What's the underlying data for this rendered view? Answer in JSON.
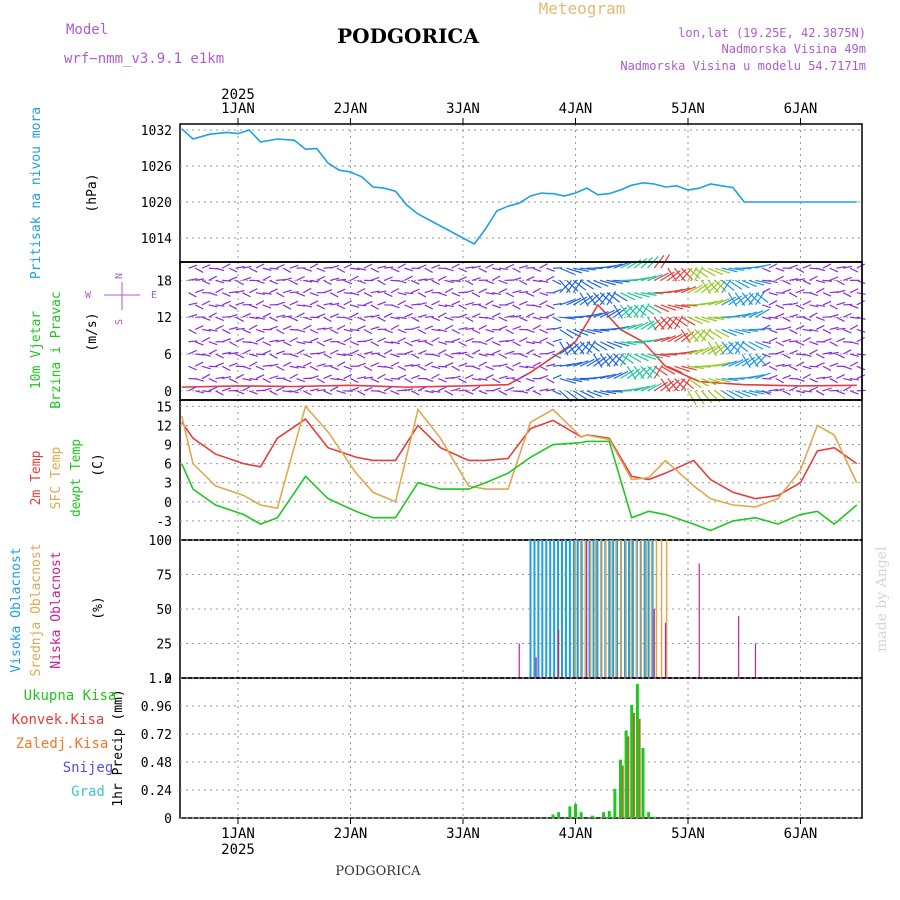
{
  "header": {
    "model_label": "Model",
    "model_name": "wrf−nmm_v3.9.1  e1km",
    "station": "PODGORICA",
    "meteogram": "Meteogram",
    "lonlat": "lon,lat (19.25E, 42.3875N)",
    "elevation": "Nadmorska Visina 49m",
    "model_elevation": "Nadmorska Visina u modelu 54.7171m",
    "year": "2025",
    "footer_station": "PODGORICA",
    "watermark": "made by Angel"
  },
  "colors": {
    "pressure": "#1ea0e6",
    "temp2m": "#e83c3c",
    "sfc": "#e0a850",
    "dewpt": "#1ec81e",
    "cloud_high": "#1ea0e6",
    "cloud_mid": "#e0a850",
    "cloud_low": "#c81e96",
    "precip_total": "#1ec81e",
    "precip_conv": "#e83c3c",
    "precip_frozen": "#f07828",
    "precip_snow": "#5050e6",
    "precip_graup": "#3cc8c8",
    "title_purple": "#b05ad0",
    "meteogram_orange": "#e8b870",
    "grid": "#999999"
  },
  "chart_data": [
    {
      "type": "line",
      "panel": "pressure",
      "ylabel": [
        "Pritisak na nivou mora",
        "(hPa)"
      ],
      "ylim": [
        1010,
        1033
      ],
      "yticks": [
        1014,
        1020,
        1026,
        1032
      ],
      "x_day_offset": [
        0,
        0.1,
        0.25,
        0.4,
        0.5,
        0.6,
        0.7,
        0.85,
        1.0,
        1.1,
        1.2,
        1.3,
        1.4,
        1.5,
        1.6,
        1.7,
        1.8,
        1.9,
        2.0,
        2.1,
        2.2,
        2.3,
        2.4,
        2.5,
        2.6,
        2.7,
        2.8,
        2.9,
        3.0,
        3.1,
        3.2,
        3.25,
        3.3,
        3.4,
        3.5,
        3.6,
        3.7,
        3.8,
        3.9,
        4.0,
        4.1,
        4.2,
        4.3,
        4.4,
        4.5,
        4.6,
        4.7,
        4.8,
        4.9,
        5.0,
        5.1,
        5.2,
        5.3,
        5.4,
        5.5,
        5.6,
        5.7,
        5.8,
        5.9,
        6.0
      ],
      "values": [
        1032.2,
        1030.5,
        1031.3,
        1031.6,
        1031.4,
        1032.0,
        1030.0,
        1030.5,
        1030.3,
        1028.8,
        1028.9,
        1026.5,
        1025.3,
        1025.0,
        1024.2,
        1022.5,
        1022.3,
        1021.8,
        1019.5,
        1018.0,
        1017.0,
        1016.0,
        1015.0,
        1014.0,
        1013.0,
        1015.5,
        1018.5,
        1019.3,
        1019.8,
        1021.0,
        1021.5,
        1021.4,
        1021.4,
        1021.0,
        1021.5,
        1022.3,
        1021.2,
        1021.4,
        1022.0,
        1022.8,
        1023.2,
        1023.0,
        1022.5,
        1022.7,
        1022.0,
        1022.3,
        1023.0,
        1022.7,
        1022.4,
        1020.0,
        1020.0,
        1020.0,
        1020.0,
        1020.0,
        1020.0,
        1020.0,
        1020.0,
        1020.0,
        1020.0,
        1020.0
      ]
    },
    {
      "type": "line",
      "panel": "wind",
      "ylabel": [
        "10m Vjetar",
        "Brzina i Pravac",
        "(m/s)"
      ],
      "ylim": [
        -1.5,
        21
      ],
      "yticks": [
        0,
        6,
        12,
        18
      ],
      "compass": [
        "N",
        "W",
        "E",
        "S"
      ],
      "x_day_offset": [
        0,
        0.5,
        1.0,
        1.5,
        2.0,
        2.5,
        2.9,
        3.1,
        3.3,
        3.5,
        3.7,
        3.9,
        4.1,
        4.3,
        4.6,
        5.0,
        5.5,
        6.0
      ],
      "speed": [
        0.6,
        0.8,
        0.7,
        0.9,
        0.6,
        0.8,
        1.0,
        3.0,
        5.5,
        8.0,
        14.0,
        10.0,
        8.0,
        4.0,
        1.5,
        1.0,
        0.8,
        0.9
      ]
    },
    {
      "type": "line",
      "panel": "temperature",
      "ylabel": [
        "2m Temp",
        "SFC Temp",
        "dewpt Temp",
        "(C)"
      ],
      "ylim": [
        -6,
        16
      ],
      "yticks": [
        -3,
        0,
        3,
        6,
        9,
        12,
        15
      ],
      "x_day_offset": [
        0,
        0.1,
        0.3,
        0.55,
        0.7,
        0.85,
        1.1,
        1.3,
        1.55,
        1.7,
        1.9,
        2.1,
        2.3,
        2.55,
        2.7,
        2.9,
        3.1,
        3.3,
        3.55,
        3.6,
        3.65,
        3.8,
        4.0,
        4.15,
        4.3,
        4.55,
        4.7,
        4.9,
        5.1,
        5.3,
        5.5,
        5.65,
        5.8,
        6.0
      ],
      "series": [
        {
          "name": "2m Temp",
          "values": [
            12.5,
            10,
            7.5,
            6,
            5.5,
            10,
            13,
            8.5,
            7,
            6.5,
            6.5,
            12,
            8.5,
            6.5,
            6.5,
            6.8,
            11.5,
            12.8,
            10.2,
            10.5,
            10.4,
            10.0,
            4.0,
            3.5,
            4.5,
            6.5,
            3.5,
            1.5,
            0.5,
            1.0,
            3.0,
            8.0,
            8.5,
            6.0
          ]
        },
        {
          "name": "SFC Temp",
          "values": [
            13.5,
            6,
            2.5,
            1.0,
            -0.5,
            -1.0,
            15,
            11,
            4.5,
            1.5,
            0.0,
            14.5,
            10,
            2.5,
            2.0,
            2.0,
            12.5,
            14.5,
            10.2,
            10.5,
            10.3,
            9.8,
            3.5,
            3.8,
            6.5,
            2.5,
            0.5,
            -0.5,
            -0.8,
            0.5,
            5.0,
            12.0,
            10.5,
            3.0
          ]
        },
        {
          "name": "dewpt Temp",
          "values": [
            6.0,
            2.0,
            -0.5,
            -2.0,
            -3.5,
            -2.5,
            4.0,
            0.5,
            -1.5,
            -2.5,
            -2.5,
            3.0,
            2.0,
            2.0,
            3.0,
            4.5,
            7.0,
            9.0,
            9.3,
            9.5,
            9.5,
            9.5,
            -2.5,
            -1.5,
            -2.0,
            -3.5,
            -4.5,
            -3.0,
            -2.5,
            -3.5,
            -2.0,
            -1.5,
            -3.5,
            -0.5
          ]
        }
      ]
    },
    {
      "type": "bar",
      "panel": "cloud",
      "ylabel": [
        "Visoka Oblacnost",
        "Srednja Oblacnost",
        "Niska Oblacnost",
        "(%)"
      ],
      "ylim": [
        0,
        100
      ],
      "yticks": [
        0,
        25,
        50,
        75,
        100
      ],
      "high_x": [
        3.2,
        3.3,
        3.4,
        3.5,
        3.6,
        3.7,
        3.8,
        3.9,
        4.0
      ],
      "high_values": [
        100,
        100,
        100,
        100,
        100,
        100,
        100,
        100,
        100
      ],
      "mid_x": [
        3.45,
        3.55,
        3.65,
        3.75,
        3.85,
        3.95,
        4.05,
        4.15
      ],
      "mid_values": [
        100,
        100,
        100,
        100,
        100,
        100,
        100,
        100
      ],
      "low_x": [
        3.0,
        3.15,
        3.35,
        3.6,
        4.2,
        4.3,
        4.6,
        4.95,
        5.1
      ],
      "low_values": [
        25,
        15,
        35,
        100,
        50,
        40,
        83,
        45,
        25
      ]
    },
    {
      "type": "bar",
      "panel": "precip",
      "ylabel": [
        "1hr Precip (mm)"
      ],
      "legend": [
        "Ukupna Kisa",
        "Konvek.Kisa",
        "Zaledj.Kisa",
        "Snijeg",
        "Grad"
      ],
      "ylim": [
        0,
        1.2
      ],
      "yticks": [
        0,
        0.24,
        0.48,
        0.72,
        0.96,
        1.2
      ],
      "total_x": [
        3.3,
        3.35,
        3.45,
        3.5,
        3.55,
        3.65,
        3.75,
        3.8,
        3.85,
        3.9,
        3.95,
        4.0,
        4.05,
        4.1,
        4.15,
        4.2
      ],
      "total_values": [
        0.03,
        0.05,
        0.1,
        0.12,
        0.05,
        0.02,
        0.05,
        0.06,
        0.25,
        0.5,
        0.75,
        0.97,
        1.15,
        0.6,
        0.05,
        0.01
      ],
      "conv_x": [
        3.9,
        3.95,
        4.0,
        4.05
      ],
      "conv_values": [
        0.45,
        0.7,
        0.9,
        0.85
      ],
      "xlabels": [
        "1JAN",
        "2JAN",
        "3JAN",
        "4JAN",
        "5JAN",
        "6JAN"
      ]
    }
  ]
}
